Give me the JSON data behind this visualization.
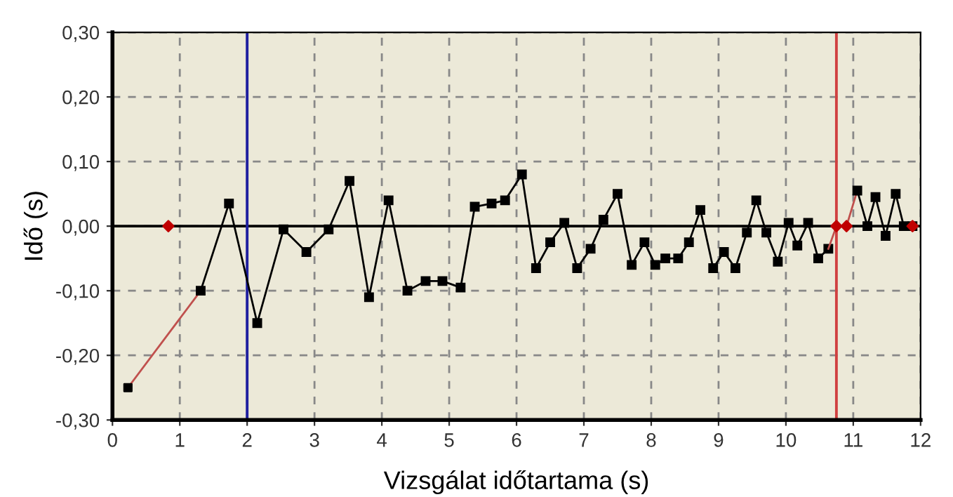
{
  "chart_data": {
    "type": "line",
    "xlabel": "Vizsgálat időtartama (s)",
    "ylabel": "Idő (s)",
    "xlim": [
      0,
      12
    ],
    "xticks": [
      0,
      1,
      2,
      3,
      4,
      5,
      6,
      7,
      8,
      9,
      10,
      11,
      12
    ],
    "ylim": [
      -0.3,
      0.3
    ],
    "yticks": [
      {
        "value": -0.3,
        "label": "-0,30"
      },
      {
        "value": -0.2,
        "label": "-0,20"
      },
      {
        "value": -0.1,
        "label": "-0,10"
      },
      {
        "value": 0,
        "label": "0,00"
      },
      {
        "value": 0.1,
        "label": "0,10"
      },
      {
        "value": 0.2,
        "label": "0,20"
      },
      {
        "value": 0.3,
        "label": "0,30"
      }
    ],
    "grid": true,
    "legend": false,
    "series": [
      {
        "color": "#c0504d",
        "marker": "none",
        "x": [
          0.23,
          1.31
        ],
        "values": [
          -0.25,
          -0.1
        ]
      },
      {
        "color": "#000000",
        "marker": "square",
        "x": [
          1.31,
          1.73,
          2.15,
          2.54,
          2.88,
          3.21,
          3.52,
          3.81,
          4.1,
          4.38,
          4.65,
          4.9,
          5.17,
          5.38,
          5.63,
          5.83,
          6.08,
          6.29,
          6.5,
          6.71,
          6.9,
          7.1,
          7.29,
          7.5,
          7.71,
          7.9,
          8.06,
          8.21,
          8.4,
          8.56,
          8.73,
          8.92,
          9.08,
          9.25,
          9.42,
          9.56,
          9.71,
          9.88,
          10.04,
          10.17,
          10.33,
          10.48,
          10.63
        ],
        "values": [
          -0.1,
          0.035,
          -0.15,
          -0.005,
          -0.04,
          -0.005,
          0.07,
          -0.11,
          0.04,
          -0.1,
          -0.085,
          -0.085,
          -0.095,
          0.03,
          0.035,
          0.04,
          0.08,
          -0.065,
          -0.025,
          0.005,
          -0.065,
          -0.035,
          0.01,
          0.05,
          -0.06,
          -0.025,
          -0.06,
          -0.05,
          -0.05,
          -0.025,
          0.025,
          -0.065,
          -0.04,
          -0.065,
          -0.01,
          0.04,
          -0.01,
          -0.055,
          0.005,
          -0.03,
          0.005,
          -0.05,
          -0.035
        ]
      },
      {
        "color": "#c0504d",
        "marker": "none",
        "x": [
          10.63,
          10.75,
          10.9,
          11.06
        ],
        "values": [
          -0.035,
          0,
          0,
          0.055
        ]
      },
      {
        "color": "#000000",
        "marker": "square",
        "x": [
          11.06,
          11.21,
          11.33,
          11.48,
          11.63,
          11.75,
          11.88
        ],
        "values": [
          0.055,
          0,
          0.045,
          -0.015,
          0.05,
          0,
          0
        ]
      },
      {
        "type": "scatter",
        "color": "#000000",
        "marker": "square",
        "x": [
          0.23
        ],
        "values": [
          -0.25
        ]
      },
      {
        "type": "scatter",
        "color": "#c00000",
        "marker": "diamond",
        "x": [
          0.83,
          10.75,
          10.9,
          11.88
        ],
        "values": [
          0,
          0,
          0,
          0
        ]
      }
    ],
    "ref_lines": [
      {
        "axis": "y",
        "value": 0,
        "color": "#000000",
        "line_style": "solid"
      },
      {
        "axis": "x",
        "value": 2,
        "color": "#1f1fa0",
        "line_style": "solid"
      },
      {
        "axis": "x",
        "value": 10.75,
        "color": "#d04040",
        "line_style": "solid"
      }
    ]
  }
}
